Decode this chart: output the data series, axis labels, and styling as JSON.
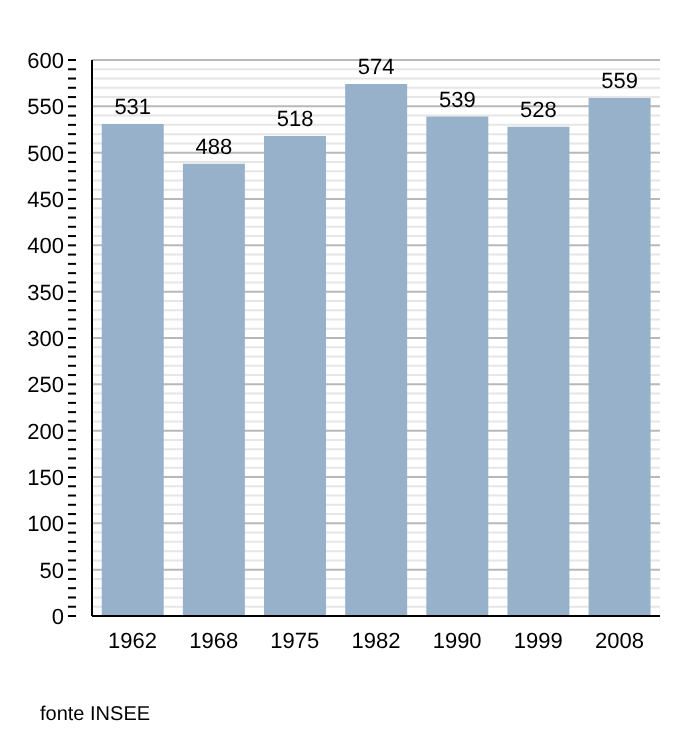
{
  "chart_data": {
    "type": "bar",
    "categories": [
      "1962",
      "1968",
      "1975",
      "1982",
      "1990",
      "1999",
      "2008"
    ],
    "values": [
      531,
      488,
      518,
      574,
      539,
      528,
      559
    ],
    "color": "#97b1cb",
    "data_labels": true,
    "ylim": [
      0,
      600
    ],
    "yticks": [
      0,
      {
        "value": 10,
        "label": null
      },
      {
        "value": 20,
        "label": null
      },
      {
        "value": 30,
        "label": null
      },
      {
        "value": 40,
        "label": null
      },
      50,
      {
        "value": 60,
        "label": null
      },
      {
        "value": 70,
        "label": null
      },
      {
        "value": 80,
        "label": null
      },
      {
        "value": 90,
        "label": null
      },
      100,
      {
        "value": 110,
        "label": null
      },
      {
        "value": 120,
        "label": null
      },
      {
        "value": 130,
        "label": null
      },
      {
        "value": 140,
        "label": null
      },
      150,
      {
        "value": 160,
        "label": null
      },
      {
        "value": 170,
        "label": null
      },
      {
        "value": 180,
        "label": null
      },
      {
        "value": 190,
        "label": null
      },
      200,
      {
        "value": 210,
        "label": null
      },
      {
        "value": 220,
        "label": null
      },
      {
        "value": 230,
        "label": null
      },
      {
        "value": 240,
        "label": null
      },
      250,
      {
        "value": 260,
        "label": null
      },
      {
        "value": 270,
        "label": null
      },
      {
        "value": 280,
        "label": null
      },
      {
        "value": 290,
        "label": null
      },
      300,
      {
        "value": 310,
        "label": null
      },
      {
        "value": 320,
        "label": null
      },
      {
        "value": 330,
        "label": null
      },
      {
        "value": 340,
        "label": null
      },
      350,
      {
        "value": 360,
        "label": null
      },
      {
        "value": 370,
        "label": null
      },
      {
        "value": 380,
        "label": null
      },
      {
        "value": 390,
        "label": null
      },
      400,
      {
        "value": 410,
        "label": null
      },
      {
        "value": 420,
        "label": null
      },
      {
        "value": 430,
        "label": null
      },
      {
        "value": 440,
        "label": null
      },
      450,
      {
        "value": 460,
        "label": null
      },
      {
        "value": 470,
        "label": null
      },
      {
        "value": 480,
        "label": null
      },
      {
        "value": 490,
        "label": null
      },
      500,
      {
        "value": 510,
        "label": null
      },
      {
        "value": 520,
        "label": null
      },
      {
        "value": 530,
        "label": null
      },
      {
        "value": 540,
        "label": null
      },
      550,
      {
        "value": 560,
        "label": null
      },
      {
        "value": 570,
        "label": null
      },
      {
        "value": 580,
        "label": null
      },
      {
        "value": 590,
        "label": null
      },
      600
    ],
    "grid": "y",
    "annotations": [
      "fonte INSEE"
    ]
  }
}
